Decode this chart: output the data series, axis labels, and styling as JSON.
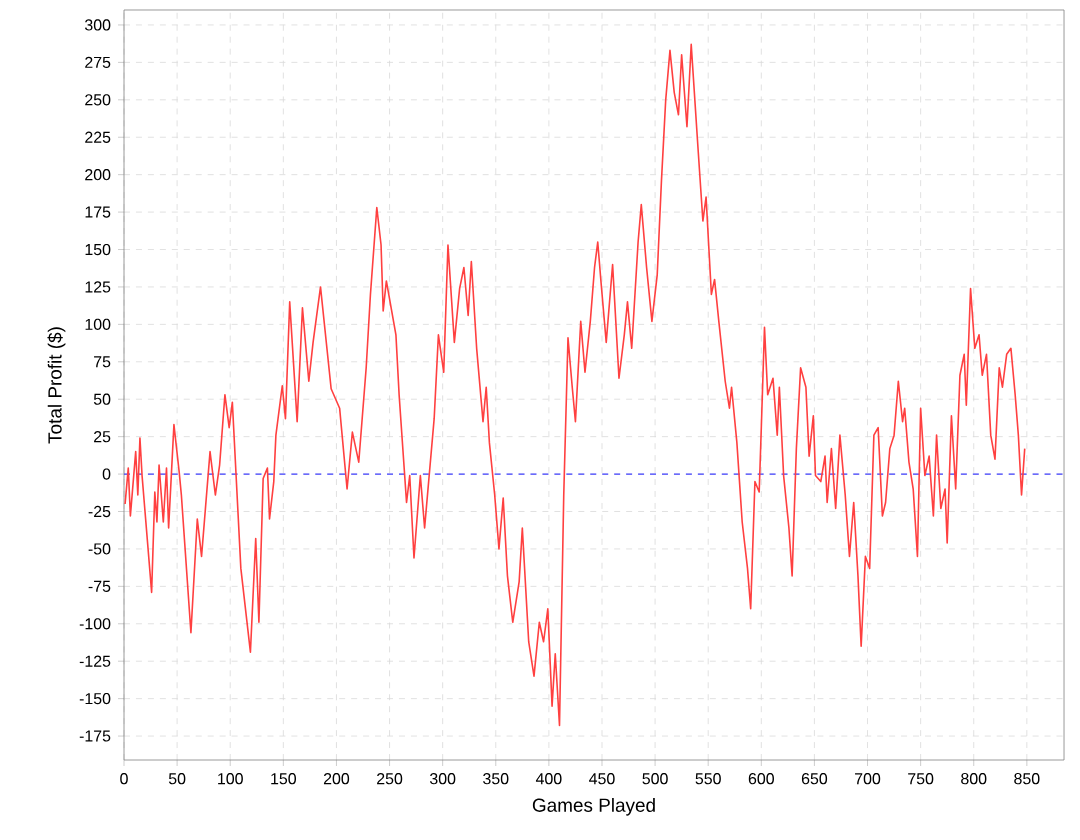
{
  "chart_data": {
    "type": "line",
    "xlabel": "Games Played",
    "ylabel": "Total Profit ($)",
    "xlim": [
      0,
      885
    ],
    "ylim": [
      -191,
      310
    ],
    "xticks": [
      0,
      50,
      100,
      150,
      200,
      250,
      300,
      350,
      400,
      450,
      500,
      550,
      600,
      650,
      700,
      750,
      800,
      850
    ],
    "yticks": [
      -175,
      -150,
      -125,
      -100,
      -75,
      -50,
      -25,
      0,
      25,
      50,
      75,
      100,
      125,
      150,
      175,
      200,
      225,
      250,
      275,
      300
    ],
    "grid": true,
    "marker": "none",
    "line_style": "solid",
    "ref_lines": [
      {
        "axis": "y",
        "value": 0,
        "color": "#4040ff",
        "line_style": "dashed"
      }
    ],
    "series": [
      {
        "color": "#ff4040",
        "x": [
          1,
          4,
          6,
          11,
          13,
          15,
          17,
          26,
          29,
          31,
          33,
          37,
          40,
          42,
          47,
          52,
          54,
          63,
          69,
          73,
          81,
          86,
          90,
          95,
          99,
          102,
          110,
          119,
          124,
          127,
          131,
          135,
          137,
          141,
          143,
          149,
          152,
          156,
          163,
          168,
          174,
          178,
          185,
          195,
          203,
          210,
          215,
          221,
          225,
          228,
          232,
          238,
          242,
          244,
          247,
          256,
          259,
          266,
          269,
          273,
          279,
          283,
          292,
          296,
          301,
          305,
          311,
          316,
          320,
          324,
          327,
          332,
          338,
          341,
          344,
          349,
          353,
          357,
          361,
          366,
          372,
          375,
          381,
          386,
          391,
          395,
          399,
          403,
          406,
          410,
          414,
          418,
          422,
          425,
          430,
          434,
          439,
          443,
          446,
          449,
          454,
          460,
          466,
          471,
          474,
          478,
          484,
          487,
          492,
          497,
          502,
          506,
          510,
          514,
          518,
          522,
          525,
          530,
          534,
          540,
          545,
          548,
          553,
          556,
          560,
          566,
          570,
          572,
          577,
          582,
          587,
          590,
          594,
          598,
          600,
          603,
          606,
          611,
          615,
          617,
          621,
          626,
          629,
          633,
          637,
          642,
          645,
          649,
          651,
          656,
          660,
          662,
          666,
          670,
          674,
          679,
          683,
          687,
          691,
          694,
          698,
          702,
          706,
          710,
          714,
          717,
          721,
          725,
          729,
          733,
          735,
          739,
          743,
          747,
          750,
          754,
          758,
          762,
          765,
          769,
          773,
          775,
          779,
          783,
          787,
          791,
          793,
          797,
          801,
          805,
          808,
          812,
          816,
          820,
          824,
          827,
          831,
          835,
          839,
          842,
          845,
          848
        ],
        "values": [
          -20,
          4,
          -28,
          15,
          -14,
          24,
          -1,
          -79,
          -12,
          -32,
          6,
          -32,
          4,
          -36,
          33,
          1,
          -14,
          -106,
          -30,
          -55,
          15,
          -14,
          6,
          53,
          31,
          48,
          -63,
          -119,
          -43,
          -99,
          -3,
          4,
          -30,
          -5,
          26,
          59,
          37,
          115,
          35,
          111,
          62,
          88,
          125,
          57,
          44,
          -10,
          28,
          8,
          44,
          71,
          120,
          178,
          153,
          109,
          129,
          93,
          53,
          -19,
          -1,
          -56,
          -1,
          -36,
          37,
          93,
          68,
          153,
          88,
          124,
          138,
          106,
          142,
          84,
          35,
          58,
          21,
          -14,
          -50,
          -16,
          -68,
          -99,
          -72,
          -36,
          -112,
          -135,
          -99,
          -112,
          -90,
          -155,
          -120,
          -168,
          -14,
          91,
          58,
          35,
          102,
          68,
          102,
          138,
          155,
          129,
          88,
          140,
          64,
          93,
          115,
          84,
          155,
          180,
          138,
          102,
          133,
          196,
          250,
          283,
          255,
          240,
          280,
          232,
          287,
          222,
          169,
          185,
          120,
          130,
          102,
          62,
          44,
          58,
          21,
          -32,
          -63,
          -90,
          -5,
          -12,
          31,
          98,
          53,
          64,
          26,
          58,
          -1,
          -36,
          -68,
          17,
          71,
          58,
          12,
          39,
          -1,
          -5,
          12,
          -19,
          17,
          -23,
          26,
          -14,
          -55,
          -19,
          -68,
          -115,
          -55,
          -63,
          26,
          31,
          -28,
          -19,
          17,
          26,
          62,
          35,
          44,
          8,
          -10,
          -55,
          44,
          -1,
          12,
          -28,
          26,
          -23,
          -10,
          -46,
          39,
          -10,
          66,
          80,
          46,
          124,
          84,
          93,
          66,
          80,
          26,
          10,
          71,
          58,
          80,
          84,
          53,
          26,
          -14,
          17
        ]
      }
    ]
  }
}
